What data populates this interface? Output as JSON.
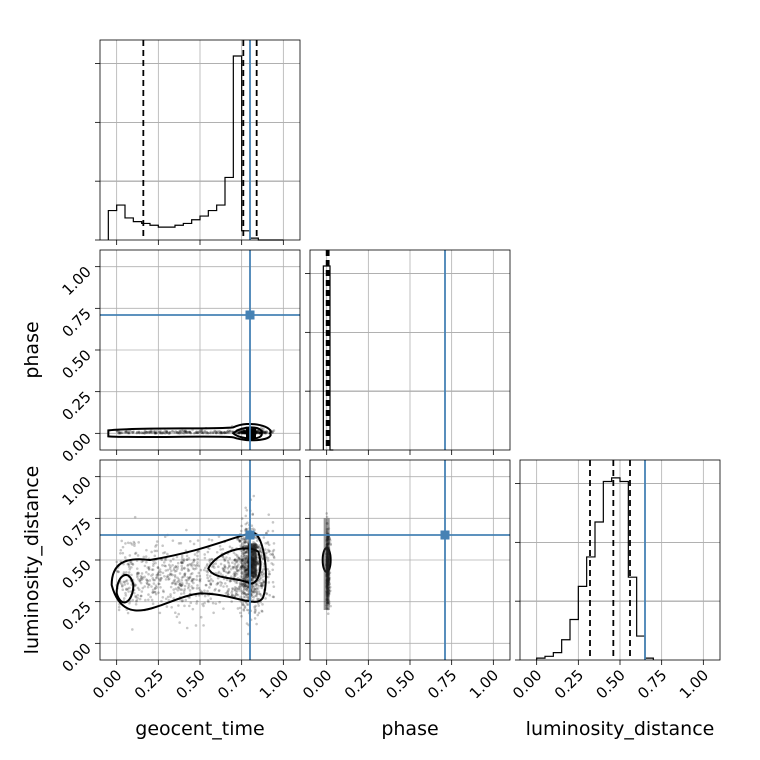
{
  "chart_data": {
    "type": "corner",
    "parameters": [
      "geocent_time",
      "phase",
      "luminosity_distance"
    ],
    "labels": {
      "geocent_time": "geocent_time",
      "phase": "phase",
      "luminosity_distance": "luminosity_distance"
    },
    "ticks": [
      0.0,
      0.25,
      0.5,
      0.75,
      1.0
    ],
    "tick_labels": [
      "0.00",
      "0.25",
      "0.50",
      "0.75",
      "1.00"
    ],
    "axis_range": [
      -0.1,
      1.1
    ],
    "grid": true,
    "truths": {
      "geocent_time": 0.8,
      "phase": 0.71,
      "luminosity_distance": 0.65
    },
    "quantiles": {
      "geocent_time": [
        0.16,
        0.76,
        0.84
      ],
      "phase": [
        0.0,
        0.005,
        0.012
      ],
      "luminosity_distance": [
        0.32,
        0.46,
        0.56
      ]
    },
    "histograms": {
      "geocent_time": {
        "bin_edges": [
          -0.05,
          0.0,
          0.05,
          0.1,
          0.15,
          0.2,
          0.25,
          0.3,
          0.35,
          0.4,
          0.45,
          0.5,
          0.55,
          0.6,
          0.65,
          0.7,
          0.75,
          0.8,
          0.85,
          0.9,
          0.95,
          1.0
        ],
        "counts": [
          0.16,
          0.19,
          0.12,
          0.1,
          0.09,
          0.08,
          0.07,
          0.07,
          0.08,
          0.09,
          0.11,
          0.13,
          0.16,
          0.19,
          0.34,
          1.0,
          0.05,
          0.01,
          0.0,
          0.0,
          0.0
        ]
      },
      "phase": {
        "bin_edges": [
          -0.02,
          0.0,
          0.02,
          0.04
        ],
        "counts": [
          1.0,
          1.0,
          0.0
        ]
      },
      "luminosity_distance": {
        "bin_edges": [
          0.0,
          0.05,
          0.1,
          0.15,
          0.2,
          0.25,
          0.3,
          0.35,
          0.4,
          0.45,
          0.5,
          0.55,
          0.6,
          0.65,
          0.7
        ],
        "counts": [
          0.01,
          0.02,
          0.04,
          0.11,
          0.22,
          0.4,
          0.56,
          0.75,
          0.97,
          0.99,
          0.97,
          0.45,
          0.13,
          0.01
        ]
      }
    }
  }
}
